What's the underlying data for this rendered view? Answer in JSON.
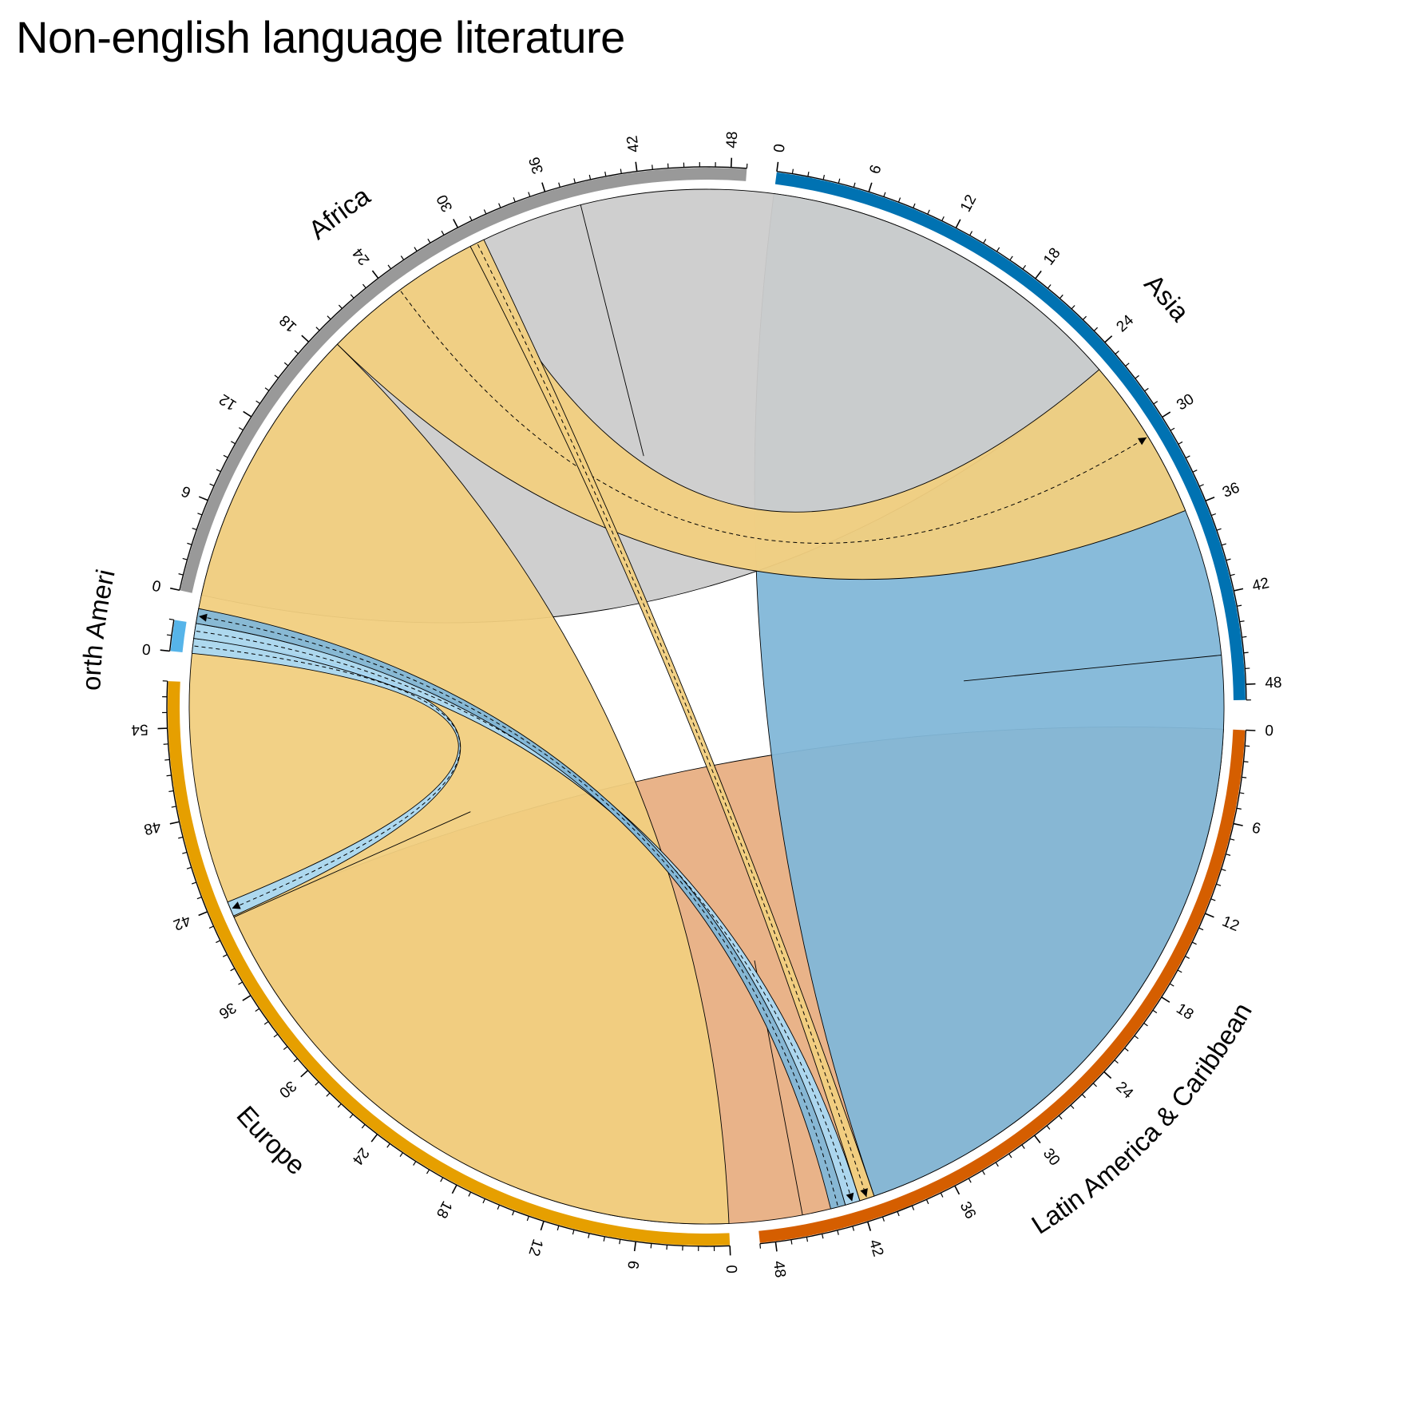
{
  "title": "Non-english language literature",
  "chart_data": {
    "type": "chord",
    "title": "Non-english language literature",
    "sectors": [
      {
        "name": "Latin America & Caribbean",
        "total": 49,
        "color": "#D55E00"
      },
      {
        "name": "Europe",
        "total": 57,
        "color": "#E69F00"
      },
      {
        "name": "North America",
        "total": 2,
        "color": "#56B4E9"
      },
      {
        "name": "Africa",
        "total": 49,
        "color": "#999999"
      },
      {
        "name": "Asia",
        "total": 49,
        "color": "#0072B2"
      }
    ],
    "ticks": {
      "major_every": 6,
      "minor_every": 1
    },
    "tick_labels_shown": [
      "0",
      "6",
      "12",
      "18",
      "24",
      "30",
      "36",
      "42",
      "48",
      "54"
    ],
    "links": [
      {
        "from": "Latin America & Caribbean",
        "to": "Latin America & Caribbean",
        "value": 46,
        "color": "#E8AF83"
      },
      {
        "from": "Asia",
        "to": "Asia",
        "value": 46,
        "color": "#82B7D8"
      },
      {
        "from": "Africa",
        "to": "Africa",
        "value": 38,
        "color": "#CCCCCC"
      },
      {
        "from": "Europe",
        "to": "Europe",
        "value": 41,
        "color": "#F1CF80"
      },
      {
        "from": "Europe",
        "to": "Africa",
        "value": 11,
        "color": "#F1CF80"
      },
      {
        "from": "Europe",
        "to": "Asia",
        "value": 1,
        "color": "#F1CF80"
      },
      {
        "from": "North America",
        "to": "Latin America & Caribbean",
        "value": 1,
        "color": "#A9D8F3"
      },
      {
        "from": "North America",
        "to": "Asia",
        "value": 1,
        "color": "#A9D8F3"
      },
      {
        "from": "Asia",
        "to": "North America",
        "value": 1,
        "color": "#82B7D8"
      }
    ]
  }
}
